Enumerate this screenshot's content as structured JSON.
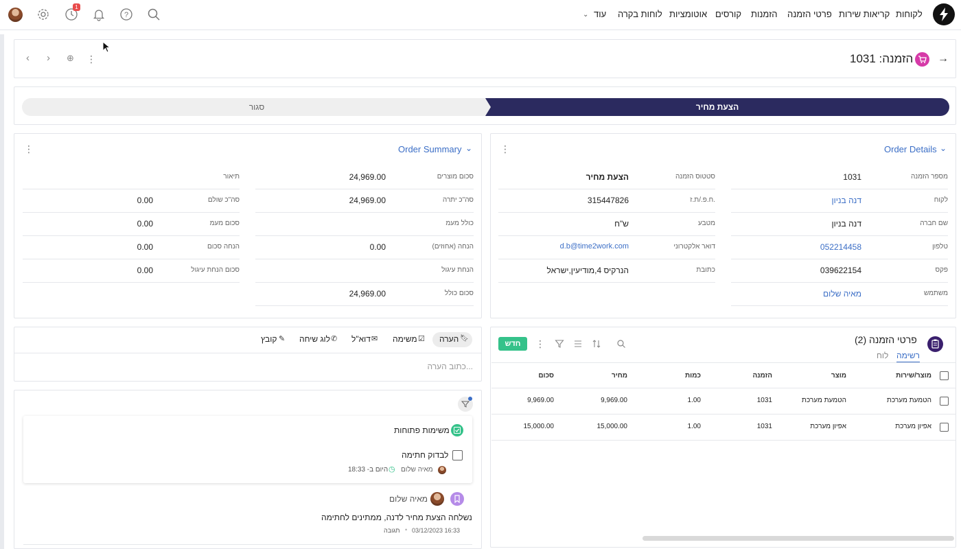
{
  "nav": {
    "items": [
      "לקוחות",
      "קריאות שירות",
      "פרטי הזמנה",
      "הזמנות",
      "קורסים",
      "אוטומציות",
      "לוחות בקרה",
      "עוד"
    ],
    "badge_count": "1"
  },
  "record": {
    "title": "הזמנה: 1031"
  },
  "stages": {
    "active": "הצעת מחיר",
    "inactive": "סגור"
  },
  "order_details": {
    "title": "Order Details",
    "right_col": [
      {
        "label": "מספר הזמנה",
        "value": "1031"
      },
      {
        "label": "לקוח",
        "value": "דנה בניון"
      },
      {
        "label": "שם חברה",
        "value": "דנה בניון"
      },
      {
        "label": "טלפון",
        "value": "052214458"
      },
      {
        "label": "פקס",
        "value": "039622154"
      },
      {
        "label": "משתמש",
        "value": "מאיה שלום"
      }
    ],
    "left_col": [
      {
        "label": "סטטוס הזמנה",
        "value": "הצעת מחיר"
      },
      {
        "label": "ח.פ./ת.ז.",
        "value": "315447826"
      },
      {
        "label": "מטבע",
        "value": "ש\"ח"
      },
      {
        "label": "דואר אלקטרוני",
        "value": "d.b@time2work.com"
      },
      {
        "label": "כתובת",
        "value": "הנרקיס 4,מודיעין,ישראל"
      }
    ]
  },
  "order_summary": {
    "title": "Order Summary",
    "right_col": [
      {
        "label": "סכום מוצרים",
        "value": "24,969.00"
      },
      {
        "label": "סה\"כ יתרה",
        "value": "24,969.00"
      },
      {
        "label": "כולל מעמ",
        "value": ""
      },
      {
        "label": "הנחה (אחוזים)",
        "value": "0.00"
      },
      {
        "label": "הנחת עיגול",
        "value": ""
      },
      {
        "label": "סכום כולל",
        "value": "24,969.00"
      }
    ],
    "left_col": [
      {
        "label": "תיאור",
        "value": ""
      },
      {
        "label": "סה\"כ שולם",
        "value": "0.00"
      },
      {
        "label": "סכום מעמ",
        "value": "0.00"
      },
      {
        "label": "הנחה סכום",
        "value": "0.00"
      },
      {
        "label": "סכום הנחת עיגול",
        "value": "0.00"
      }
    ]
  },
  "items_panel": {
    "title": "פרטי הזמנה (2)",
    "view_tabs": [
      "רשימה",
      "לוח"
    ],
    "new_button": "חדש",
    "columns": [
      "מוצר/שירות",
      "מוצר",
      "הזמנה",
      "כמות",
      "מחיר",
      "סכום"
    ],
    "rows": [
      [
        "הטמעת מערכת",
        "הטמעת מערכת",
        "1031",
        "1.00",
        "9,969.00",
        "9,969.00"
      ],
      [
        "אפיון מערכת",
        "אפיון מערכת",
        "1031",
        "1.00",
        "15,000.00",
        "15,000.00"
      ]
    ]
  },
  "activity": {
    "tabs": [
      "הערה",
      "משימה",
      "דוא\"ל",
      "לוג שיחה",
      "קובץ"
    ],
    "note_placeholder": "כתוב הערה...",
    "open_tasks_title": "משימות פתוחות",
    "task": {
      "title": "לבדוק חתימה",
      "user": "מאיה שלום",
      "time": "היום ב- 18:33"
    },
    "note": {
      "user": "מאיה שלום",
      "text": "נשלחה הצעת מחיר לדנה, ממתינים לחתימה",
      "date": "03/12/2023 16:33",
      "reply": "תגובה"
    }
  }
}
